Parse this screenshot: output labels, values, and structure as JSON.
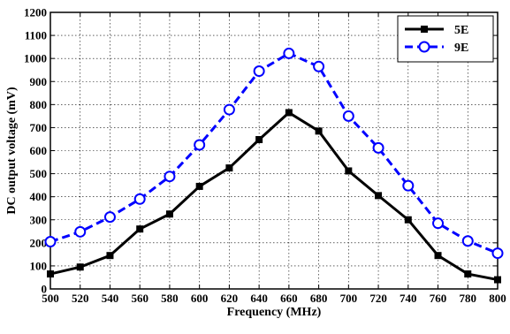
{
  "chart_data": {
    "type": "line",
    "title": "",
    "xlabel": "Frequency (MHz)",
    "ylabel": "DC output voltage (mV)",
    "xlim": [
      500,
      800
    ],
    "ylim": [
      0,
      1200
    ],
    "x_ticks": [
      500,
      520,
      540,
      560,
      580,
      600,
      620,
      640,
      660,
      680,
      700,
      720,
      740,
      760,
      780,
      800
    ],
    "y_ticks": [
      0,
      100,
      200,
      300,
      400,
      500,
      600,
      700,
      800,
      900,
      1000,
      1100,
      1200
    ],
    "grid": true,
    "legend_position": "top-right",
    "x": [
      500,
      520,
      540,
      560,
      580,
      600,
      620,
      640,
      660,
      680,
      700,
      720,
      740,
      760,
      780,
      800
    ],
    "series": [
      {
        "name": "5E",
        "color": "#000000",
        "line_style": "solid",
        "marker": "square",
        "values": [
          65,
          95,
          145,
          260,
          325,
          445,
          525,
          648,
          765,
          685,
          512,
          405,
          300,
          145,
          65,
          40
        ]
      },
      {
        "name": "9E",
        "color": "#0000ff",
        "line_style": "dashed",
        "marker": "circle",
        "values": [
          205,
          248,
          312,
          390,
          488,
          625,
          778,
          945,
          1022,
          965,
          750,
          612,
          448,
          285,
          208,
          155
        ]
      }
    ]
  }
}
